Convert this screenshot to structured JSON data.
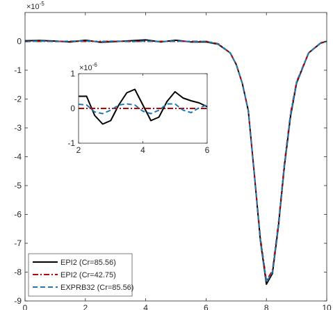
{
  "colors": {
    "epi2_85": "#000000",
    "epi2_42": "#c00000",
    "exprb32": "#1f77b4",
    "axis": "#262626"
  },
  "chart_data": [
    {
      "type": "line",
      "exponent_label": "×10",
      "exponent_power": "-5",
      "xlim": [
        0,
        10
      ],
      "ylim": [
        -9e-05,
        1e-05
      ],
      "xticks": [
        0,
        2,
        4,
        6,
        8,
        10
      ],
      "xtick_labels": [
        "0",
        "2",
        "4",
        "6",
        "8",
        "10"
      ],
      "yticks": [
        0,
        -1e-05,
        -2e-05,
        -3e-05,
        -4e-05,
        -5e-05,
        -6e-05,
        -7e-05,
        -8e-05,
        -9e-05
      ],
      "ytick_labels": [
        "0",
        "-1",
        "-2",
        "-3",
        "-4",
        "-5",
        "-6",
        "-7",
        "-8",
        "-9"
      ],
      "grid": false,
      "legend_position": "bottom-left",
      "series": [
        {
          "name": "EPI2 (Cr=85.56)",
          "style": "solid",
          "x": [
            0,
            0.5,
            1,
            1.5,
            2,
            2.5,
            3,
            3.5,
            4,
            4.5,
            5,
            5.5,
            6,
            6.4,
            6.8,
            7.0,
            7.2,
            7.4,
            7.6,
            7.8,
            8.0,
            8.2,
            8.4,
            8.6,
            8.8,
            9.0,
            9.4,
            9.8,
            10
          ],
          "y": [
            2e-07,
            3e-07,
            1e-07,
            -2e-07,
            4e-07,
            -3e-07,
            -1e-07,
            2e-07,
            5e-07,
            -2e-07,
            4e-07,
            -2e-07,
            -2e-07,
            -1e-06,
            -4e-06,
            -8e-06,
            -1.45e-05,
            -2.4e-05,
            -4.6e-05,
            -6.9e-05,
            -8.42e-05,
            -8.05e-05,
            -6.4e-05,
            -4.3e-05,
            -2.6e-05,
            -1.45e-05,
            -4e-06,
            -6e-07,
            0
          ]
        },
        {
          "name": "EPI2 (Cr=42.75)",
          "style": "dashdot",
          "x": [
            0,
            0.5,
            1,
            1.5,
            2,
            2.5,
            3,
            3.5,
            4,
            4.5,
            5,
            5.5,
            6,
            6.4,
            6.8,
            7.0,
            7.2,
            7.4,
            7.6,
            7.8,
            8.0,
            8.2,
            8.4,
            8.6,
            8.8,
            9.0,
            9.4,
            9.8,
            10
          ],
          "y": [
            0,
            0,
            0,
            0,
            0,
            0,
            0,
            0,
            0,
            0,
            0,
            0,
            0,
            -8e-07,
            -4e-06,
            -8e-06,
            -1.45e-05,
            -2.4e-05,
            -4.6e-05,
            -6.8e-05,
            -8.3e-05,
            -7.95e-05,
            -6.3e-05,
            -4.2e-05,
            -2.5e-05,
            -1.4e-05,
            -4e-06,
            -5e-07,
            0
          ]
        },
        {
          "name": "EXPRB32 (Cr=85.56)",
          "style": "dashed",
          "x": [
            0,
            0.5,
            1,
            1.5,
            2,
            2.5,
            3,
            3.5,
            4,
            4.5,
            5,
            5.5,
            6,
            6.4,
            6.8,
            7.0,
            7.2,
            7.4,
            7.6,
            7.8,
            8.0,
            8.2,
            8.4,
            8.6,
            8.8,
            9.0,
            9.4,
            9.8,
            10
          ],
          "y": [
            -1e-07,
            1e-07,
            -1e-07,
            1e-07,
            1e-07,
            -1e-07,
            1e-07,
            -1e-07,
            1e-07,
            -1e-07,
            1e-07,
            -1e-07,
            0,
            -9e-07,
            -4e-06,
            -8e-06,
            -1.45e-05,
            -2.4e-05,
            -4.6e-05,
            -6.85e-05,
            -8.35e-05,
            -8e-05,
            -6.35e-05,
            -4.25e-05,
            -2.55e-05,
            -1.42e-05,
            -4e-06,
            -5e-07,
            0
          ]
        }
      ]
    },
    {
      "type": "line",
      "exponent_label": "×10",
      "exponent_power": "-6",
      "xlim": [
        2,
        6
      ],
      "ylim": [
        -1e-06,
        1e-06
      ],
      "xticks": [
        2,
        4,
        6
      ],
      "xtick_labels": [
        "2",
        "4",
        "6"
      ],
      "yticks": [
        1e-06,
        0,
        -1e-06
      ],
      "ytick_labels": [
        "1",
        "0",
        "-1"
      ],
      "grid": false,
      "series": [
        {
          "ref": "EPI2 (Cr=85.56)",
          "style": "solid",
          "x": [
            2.0,
            2.25,
            2.5,
            2.75,
            3.0,
            3.25,
            3.5,
            3.75,
            4.0,
            4.25,
            4.5,
            4.75,
            5.0,
            5.25,
            5.5,
            5.75,
            6.0
          ],
          "y": [
            3.5e-07,
            3.5e-07,
            -2e-07,
            -4.5e-07,
            -3.5e-07,
            1e-07,
            4.5e-07,
            5.5e-07,
            1e-07,
            -3.5e-07,
            -2.5e-07,
            2e-07,
            4.8e-07,
            3e-07,
            2.2e-07,
            1.6e-07,
            5e-08
          ]
        },
        {
          "ref": "EPI2 (Cr=42.75)",
          "style": "dashdot",
          "x": [
            2.0,
            3.0,
            4.0,
            5.0,
            6.0
          ],
          "y": [
            0,
            0,
            0,
            0,
            0
          ]
        },
        {
          "ref": "EXPRB32 (Cr=85.56)",
          "style": "dashed",
          "x": [
            2.0,
            2.25,
            2.5,
            2.75,
            3.0,
            3.25,
            3.5,
            3.75,
            4.0,
            4.25,
            4.5,
            4.75,
            5.0,
            5.25,
            5.5,
            5.75,
            6.0
          ],
          "y": [
            1.2e-07,
            1e-07,
            -1e-07,
            -1.5e-07,
            -5e-08,
            1e-07,
            1.3e-07,
            1e-07,
            -8e-08,
            -1.5e-07,
            -5e-08,
            1.3e-07,
            1.3e-07,
            -5e-08,
            -1.2e-07,
            2e-08,
            1e-07
          ]
        }
      ]
    }
  ]
}
